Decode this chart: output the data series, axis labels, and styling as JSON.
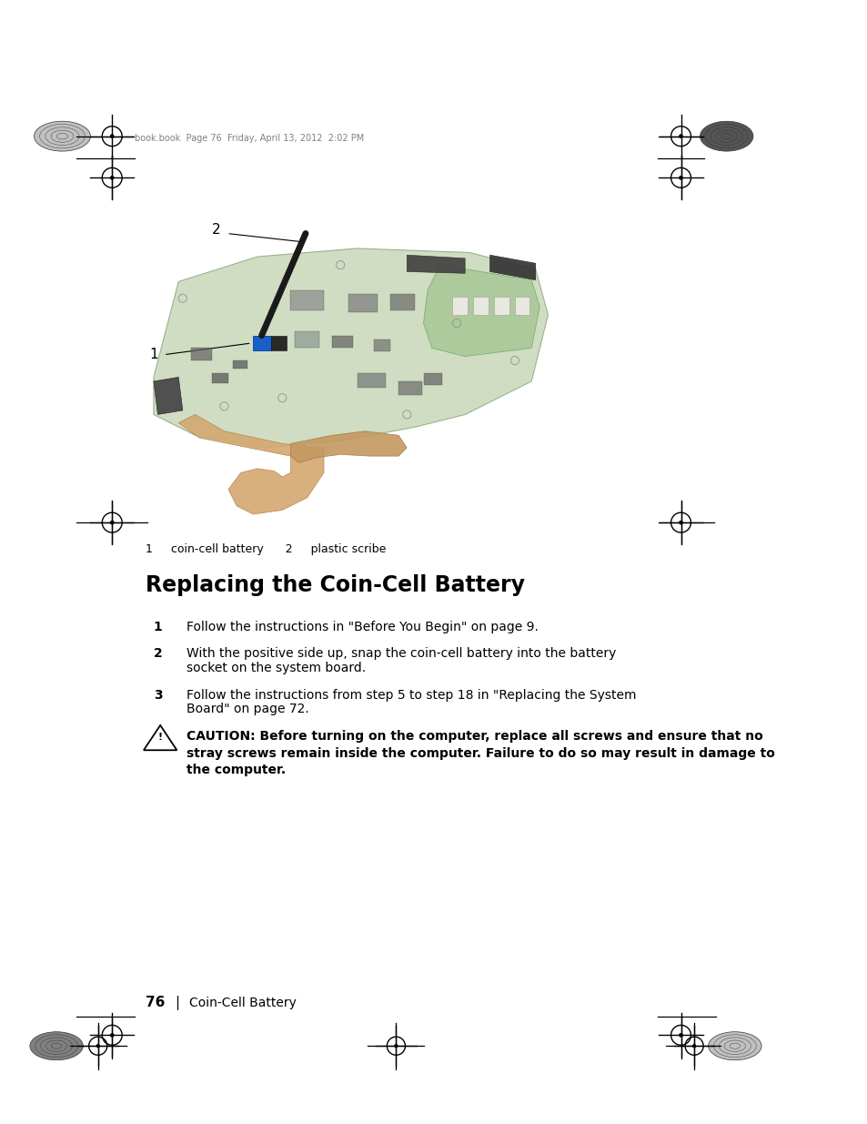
{
  "page_width": 9.54,
  "page_height": 12.35,
  "bg_color": "#ffffff",
  "header_text": "book.book  Page 76  Friday, April 13, 2012  2:02 PM",
  "header_text_color": "#808080",
  "label1_text": "1     coin-cell battery      2     plastic scribe",
  "section_title": "Replacing the Coin-Cell Battery",
  "step1": "Follow the instructions in \"Before You Begin\" on page 9.",
  "step2_line1": "With the positive side up, snap the coin-cell battery into the battery",
  "step2_line2": "socket on the system board.",
  "step3_line1": "Follow the instructions from step 5 to step 18 in \"Replacing the System",
  "step3_line2": "Board\" on page 72.",
  "caution_text": "Before turning on the computer, replace all screws and ensure that no stray screws remain inside the computer. Failure to do so may result in damage to the computer.",
  "footer_page": "76",
  "footer_section": "Coin-Cell Battery"
}
